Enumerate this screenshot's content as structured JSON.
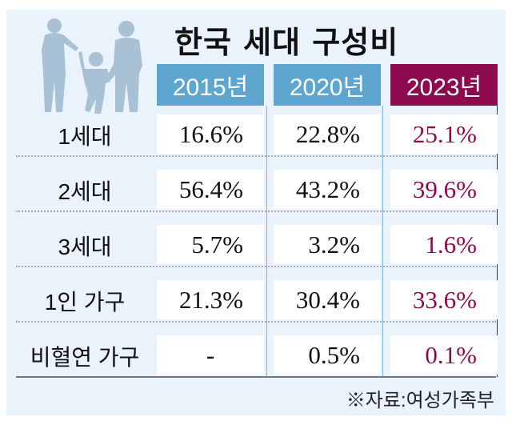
{
  "title": "한국 세대 구성비",
  "source": "※자료:여성가족부",
  "colors": {
    "blue_header": "#5ea5cf",
    "purple_header": "#8d0a4f",
    "purple_text": "#8d0a4f",
    "background": "#eaf3fb"
  },
  "icon": "family-silhouette",
  "chart_data": {
    "type": "table",
    "title": "한국 세대 구성비",
    "columns": [
      "2015년",
      "2020년",
      "2023년"
    ],
    "rows": [
      {
        "label": "1세대",
        "values": [
          "16.6%",
          "22.8%",
          "25.1%"
        ]
      },
      {
        "label": "2세대",
        "values": [
          "56.4%",
          "43.2%",
          "39.6%"
        ]
      },
      {
        "label": "3세대",
        "values": [
          "5.7%",
          "3.2%",
          "1.6%"
        ]
      },
      {
        "label": "1인 가구",
        "values": [
          "21.3%",
          "30.4%",
          "33.6%"
        ]
      },
      {
        "label": "비혈연 가구",
        "values": [
          "-",
          "0.5%",
          "0.1%"
        ]
      }
    ]
  }
}
